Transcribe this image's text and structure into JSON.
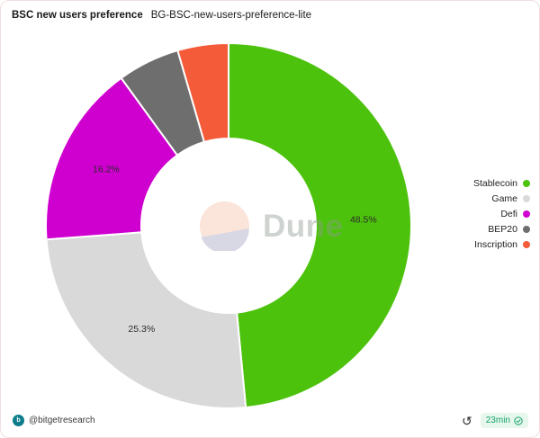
{
  "header": {
    "title": "BSC new users preference",
    "subtitle": "BG-BSC-new-users-preference-lite"
  },
  "chart_data": {
    "type": "pie",
    "donut": true,
    "title": "BSC new users preference",
    "legend_position": "right",
    "start_angle_deg": 0,
    "direction": "clockwise",
    "series": [
      {
        "name": "Stablecoin",
        "value": 48.5,
        "label": "48.5%",
        "color": "#4dc20d"
      },
      {
        "name": "Game",
        "value": 25.3,
        "label": "25.3%",
        "color": "#d9d9d9"
      },
      {
        "name": "Defi",
        "value": 16.2,
        "label": "16.2%",
        "color": "#cf00cf"
      },
      {
        "name": "BEP20",
        "value": 5.5,
        "label": "",
        "color": "#6e6e6e"
      },
      {
        "name": "Inscription",
        "value": 4.5,
        "label": "",
        "color": "#f45b38"
      }
    ],
    "slice_label_color": "#2b2b2b",
    "slice_border_color": "#ffffff"
  },
  "watermark": {
    "text": "Dune",
    "logo_top_color": "#fbe4da",
    "logo_bottom_color": "#d7d8e4"
  },
  "footer": {
    "author": "@bitgetresearch",
    "refresh_age": "23min",
    "badge_bg": "#e7f7ee",
    "badge_text_color": "#17a367"
  },
  "icons": {
    "refresh": "↺"
  }
}
